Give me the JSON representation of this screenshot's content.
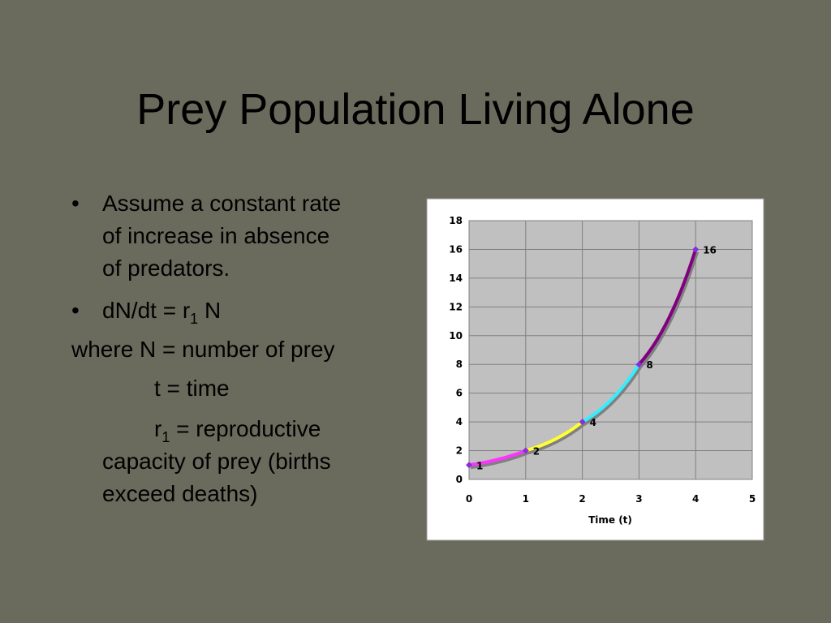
{
  "title": "Prey Population Living Alone",
  "body": [
    {
      "bullet": "•",
      "lines": [
        "Assume a constant rate",
        "of increase in absence",
        "of predators."
      ]
    },
    {
      "bullet": "•",
      "text": "dN/dt = r",
      "sub": "1",
      "after": " N"
    },
    {
      "text": "where N = number of prey"
    },
    {
      "text": "t = time"
    },
    {
      "text": "r",
      "sub": "1",
      "after": " = reproductive",
      "lines": [
        "capacity of prey (births",
        "exceed deaths)"
      ]
    }
  ],
  "chart_data": {
    "type": "line",
    "x_label": "Time (t)",
    "x": [
      0,
      1,
      2,
      3,
      4
    ],
    "values": [
      1,
      2,
      4,
      8,
      16
    ],
    "segment_colors": [
      "#ff33ff",
      "#ffff33",
      "#33eeff",
      "#800080"
    ],
    "marker_color": "#8a2be2",
    "xlim": [
      0,
      5
    ],
    "xticks": [
      0,
      1,
      2,
      3,
      4,
      5
    ],
    "ylim": [
      0,
      18
    ],
    "yticks": [
      0,
      2,
      4,
      6,
      8,
      10,
      12,
      14,
      16,
      18
    ],
    "grid": true
  }
}
